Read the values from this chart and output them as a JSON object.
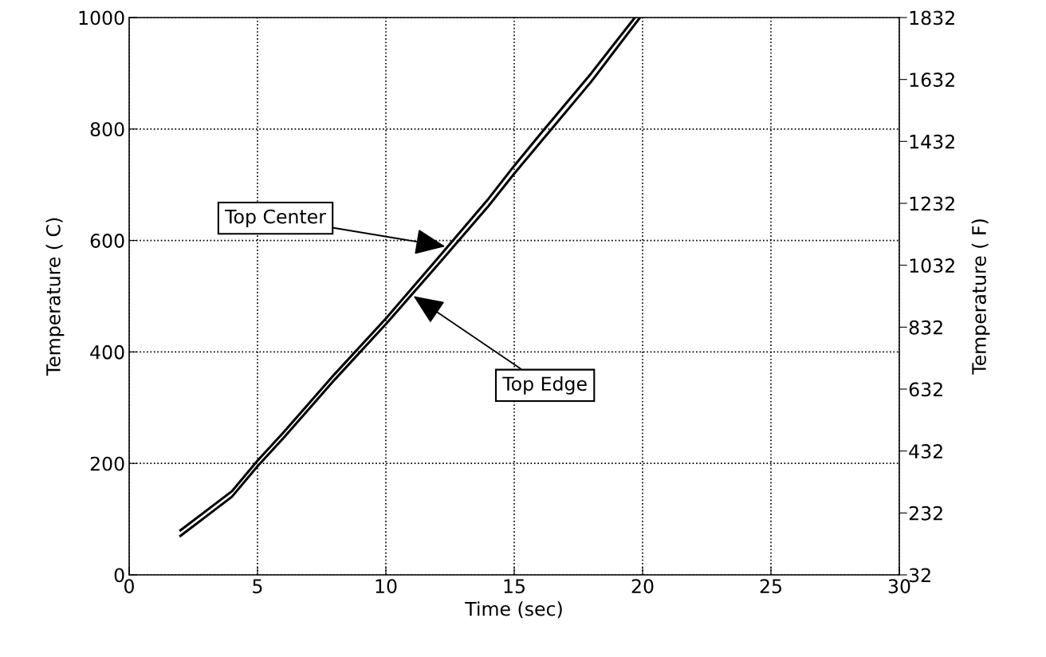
{
  "chart_data": {
    "type": "line",
    "xlabel": "Time (sec)",
    "ylabel": "Temperature ( C)",
    "y2label": "Temperature ( F)",
    "xlim": [
      0,
      30
    ],
    "xticks": [
      0,
      5,
      10,
      15,
      20,
      25,
      30
    ],
    "ylim": [
      0,
      1000
    ],
    "yticks": [
      0,
      200,
      400,
      600,
      800,
      1000
    ],
    "y2lim": [
      32,
      1832
    ],
    "y2ticks": [
      32,
      232,
      432,
      632,
      832,
      1032,
      1232,
      1432,
      1632,
      1832
    ],
    "grid": true,
    "line_style": "solid",
    "marker": "none",
    "series": [
      {
        "name": "Top Center",
        "color": "#000000",
        "x": [
          2,
          4,
          5,
          6,
          8,
          10,
          12,
          14,
          15,
          16,
          18,
          19.7
        ],
        "values": [
          80,
          150,
          205,
          255,
          360,
          460,
          567,
          675,
          734,
          790,
          900,
          1000
        ]
      },
      {
        "name": "Top Edge",
        "color": "#000000",
        "x": [
          2,
          4,
          5,
          6,
          8,
          10,
          12,
          14,
          15,
          16,
          18,
          19.9
        ],
        "values": [
          70,
          140,
          195,
          245,
          350,
          450,
          555,
          662,
          720,
          775,
          885,
          1000
        ]
      }
    ]
  }
}
